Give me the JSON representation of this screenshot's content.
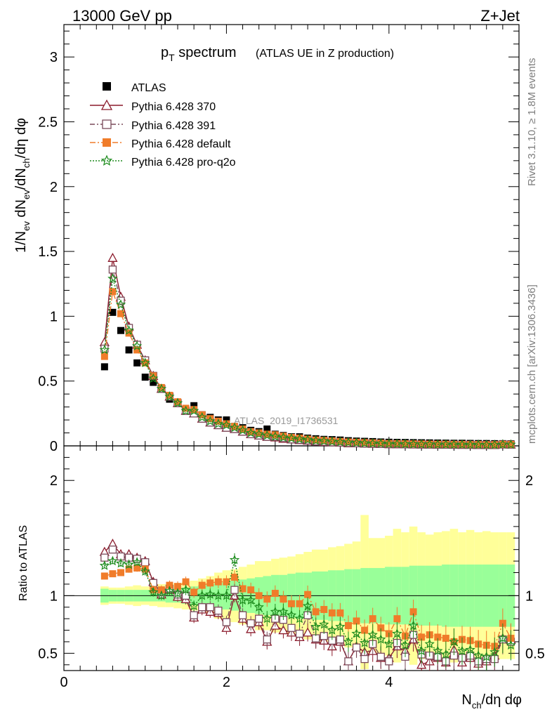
{
  "header": {
    "left": "13000 GeV pp",
    "right": "Z+Jet"
  },
  "title": {
    "main": "p",
    "main_sub": "T",
    "main_rest": " spectrum",
    "detail": "(ATLAS UE in Z production)"
  },
  "side_labels": {
    "rivet": "Rivet 3.1.10, ≥ 1.8M events",
    "mcplots": "mcplots.cern.ch [arXiv:1306.3436]"
  },
  "watermark": "ATLAS_2019_I1736531",
  "axes": {
    "main_ylabel": "1/N_ev dN_ev/dN_ch/dη dφ",
    "ratio_ylabel": "Ratio to ATLAS",
    "xlabel": "N_ch/dη dφ",
    "x_ticks": [
      "0",
      "2",
      "4"
    ],
    "main_y_ticks": [
      "0",
      "0.5",
      "1",
      "1.5",
      "2",
      "2.5",
      "3"
    ],
    "ratio_y_ticks": [
      "0.5",
      "1",
      "2"
    ]
  },
  "chart_data": {
    "type": "scatter",
    "xlim": [
      0,
      5.6
    ],
    "main_ylim": [
      0,
      3.25
    ],
    "ratio_ylim": [
      0.35,
      2.3
    ],
    "x": [
      0.5,
      0.6,
      0.7,
      0.8,
      0.9,
      1.0,
      1.1,
      1.2,
      1.3,
      1.4,
      1.5,
      1.6,
      1.7,
      1.8,
      1.9,
      2.0,
      2.1,
      2.2,
      2.3,
      2.4,
      2.5,
      2.6,
      2.7,
      2.8,
      2.9,
      3.0,
      3.1,
      3.2,
      3.3,
      3.4,
      3.5,
      3.6,
      3.7,
      3.8,
      3.9,
      4.0,
      4.1,
      4.2,
      4.3,
      4.4,
      4.5,
      4.6,
      4.7,
      4.8,
      4.9,
      5.0,
      5.1,
      5.2,
      5.3,
      5.4,
      5.5
    ],
    "series": [
      {
        "name": "ATLAS",
        "color": "#000000",
        "marker": "filled-square",
        "values": [
          0.61,
          1.03,
          0.89,
          0.74,
          0.64,
          0.53,
          0.49,
          0.44,
          0.36,
          0.33,
          0.28,
          0.31,
          0.24,
          0.22,
          0.2,
          0.2,
          0.15,
          0.14,
          0.12,
          0.11,
          0.13,
          0.09,
          0.08,
          0.07,
          0.07,
          0.06,
          0.055,
          0.05,
          0.048,
          0.045,
          0.04,
          0.037,
          0.035,
          0.033,
          0.03,
          0.028,
          0.027,
          0.026,
          0.025,
          0.024,
          0.023,
          0.022,
          0.021,
          0.02,
          0.02,
          0.019,
          0.018,
          0.018,
          0.017,
          0.017,
          0.016
        ]
      },
      {
        "name": "Pythia 6.428 370",
        "color": "#8b1a2b",
        "marker": "open-triangle",
        "values": [
          0.8,
          1.45,
          1.15,
          0.92,
          0.78,
          0.66,
          0.54,
          0.44,
          0.38,
          0.33,
          0.27,
          0.25,
          0.21,
          0.18,
          0.16,
          0.14,
          0.13,
          0.11,
          0.09,
          0.08,
          0.07,
          0.065,
          0.055,
          0.05,
          0.045,
          0.04,
          0.035,
          0.03,
          0.027,
          0.025,
          0.02,
          0.02,
          0.018,
          0.016,
          0.015,
          0.013,
          0.012,
          0.012,
          0.011,
          0.01,
          0.01,
          0.009,
          0.009,
          0.008,
          0.008,
          0.008,
          0.007,
          0.007,
          0.007,
          0.011,
          0.01
        ],
        "ratio": [
          1.38,
          1.45,
          1.36,
          1.36,
          1.33,
          1.3,
          1.12,
          1.01,
          1.05,
          0.99,
          0.97,
          0.81,
          0.88,
          0.86,
          0.85,
          0.72,
          1.0,
          0.8,
          0.71,
          0.77,
          0.6,
          0.74,
          0.7,
          0.68,
          0.64,
          0.68,
          0.62,
          0.61,
          0.56,
          0.6,
          0.43,
          0.56,
          0.51,
          0.52,
          0.46,
          0.46,
          0.56,
          0.52,
          0.62,
          0.4,
          0.43,
          0.46,
          0.42,
          0.53,
          0.42,
          0.46,
          0.41,
          0.43,
          0.48,
          0.63,
          0.62
        ]
      },
      {
        "name": "Pythia 6.428 391",
        "color": "#7a4a5a",
        "marker": "open-square",
        "values": [
          0.75,
          1.36,
          1.12,
          0.91,
          0.78,
          0.66,
          0.54,
          0.44,
          0.38,
          0.33,
          0.27,
          0.25,
          0.21,
          0.18,
          0.16,
          0.14,
          0.13,
          0.11,
          0.09,
          0.08,
          0.07,
          0.07,
          0.06,
          0.05,
          0.047,
          0.042,
          0.035,
          0.032,
          0.028,
          0.026,
          0.022,
          0.02,
          0.018,
          0.017,
          0.015,
          0.013,
          0.013,
          0.012,
          0.011,
          0.011,
          0.01,
          0.009,
          0.009,
          0.009,
          0.008,
          0.008,
          0.007,
          0.007,
          0.007,
          0.011,
          0.01
        ],
        "ratio": [
          1.33,
          1.4,
          1.34,
          1.33,
          1.32,
          1.29,
          1.11,
          1.03,
          1.06,
          1.01,
          1.0,
          0.83,
          0.9,
          0.9,
          0.87,
          0.77,
          1.05,
          0.83,
          0.76,
          0.8,
          0.62,
          0.8,
          0.79,
          0.72,
          0.67,
          0.83,
          0.63,
          0.65,
          0.61,
          0.62,
          0.43,
          0.55,
          0.45,
          0.58,
          0.47,
          0.43,
          0.59,
          0.47,
          0.66,
          0.49,
          0.48,
          0.47,
          0.43,
          0.48,
          0.46,
          0.48,
          0.43,
          0.45,
          0.45,
          0.62,
          0.6
        ]
      },
      {
        "name": "Pythia 6.428 default",
        "color": "#f07c2a",
        "marker": "filled-square",
        "values": [
          0.69,
          1.19,
          1.02,
          0.87,
          0.74,
          0.64,
          0.54,
          0.45,
          0.39,
          0.34,
          0.29,
          0.28,
          0.24,
          0.21,
          0.19,
          0.17,
          0.15,
          0.13,
          0.11,
          0.1,
          0.09,
          0.085,
          0.075,
          0.065,
          0.06,
          0.052,
          0.045,
          0.042,
          0.038,
          0.034,
          0.03,
          0.028,
          0.025,
          0.023,
          0.021,
          0.018,
          0.017,
          0.016,
          0.015,
          0.014,
          0.013,
          0.012,
          0.012,
          0.011,
          0.011,
          0.01,
          0.01,
          0.009,
          0.009,
          0.012,
          0.011
        ],
        "ratio": [
          1.17,
          1.19,
          1.2,
          1.23,
          1.24,
          1.23,
          1.05,
          1.05,
          1.09,
          1.08,
          1.12,
          1.03,
          1.09,
          1.11,
          1.12,
          1.12,
          1.16,
          1.06,
          1.05,
          1.0,
          0.97,
          1.02,
          0.97,
          0.93,
          0.93,
          1.01,
          0.86,
          0.88,
          0.85,
          0.85,
          0.74,
          0.78,
          0.7,
          0.8,
          0.72,
          0.67,
          0.8,
          0.65,
          0.86,
          0.64,
          0.66,
          0.64,
          0.63,
          0.6,
          0.62,
          0.61,
          0.58,
          0.57,
          0.56,
          0.76,
          0.63
        ]
      },
      {
        "name": "Pythia 6.428 pro-q2o",
        "color": "#1e8c1e",
        "marker": "star",
        "values": [
          0.74,
          1.29,
          1.09,
          0.89,
          0.77,
          0.64,
          0.52,
          0.44,
          0.38,
          0.33,
          0.27,
          0.27,
          0.22,
          0.19,
          0.17,
          0.16,
          0.14,
          0.12,
          0.1,
          0.09,
          0.08,
          0.072,
          0.065,
          0.058,
          0.052,
          0.047,
          0.04,
          0.037,
          0.033,
          0.03,
          0.026,
          0.024,
          0.021,
          0.019,
          0.018,
          0.016,
          0.015,
          0.014,
          0.013,
          0.012,
          0.012,
          0.011,
          0.011,
          0.01,
          0.01,
          0.009,
          0.009,
          0.008,
          0.008,
          0.011,
          0.01
        ],
        "ratio": [
          1.26,
          1.3,
          1.28,
          1.27,
          1.29,
          1.21,
          1.03,
          1.0,
          1.04,
          1.02,
          1.05,
          0.91,
          1.0,
          1.01,
          1.0,
          1.0,
          1.31,
          0.96,
          0.96,
          0.9,
          0.8,
          0.86,
          0.86,
          0.83,
          0.8,
          0.91,
          0.73,
          0.75,
          0.7,
          0.73,
          0.6,
          0.67,
          0.59,
          0.66,
          0.62,
          0.58,
          0.67,
          0.57,
          0.74,
          0.52,
          0.58,
          0.52,
          0.49,
          0.6,
          0.52,
          0.53,
          0.48,
          0.47,
          0.51,
          0.63,
          0.57
        ]
      }
    ],
    "uncertainty_band": {
      "green_halfwidth": [
        0.06,
        0.05,
        0.05,
        0.05,
        0.05,
        0.05,
        0.05,
        0.05,
        0.06,
        0.06,
        0.07,
        0.08,
        0.09,
        0.1,
        0.11,
        0.12,
        0.13,
        0.14,
        0.15,
        0.16,
        0.17,
        0.18,
        0.18,
        0.19,
        0.2,
        0.2,
        0.21,
        0.21,
        0.22,
        0.22,
        0.23,
        0.23,
        0.24,
        0.24,
        0.24,
        0.25,
        0.25,
        0.25,
        0.26,
        0.26,
        0.26,
        0.26,
        0.27,
        0.27,
        0.27,
        0.27,
        0.27,
        0.27,
        0.27,
        0.27,
        0.27
      ],
      "yellow_halfwidth": [
        0.08,
        0.07,
        0.07,
        0.08,
        0.09,
        0.08,
        0.09,
        0.1,
        0.1,
        0.11,
        0.12,
        0.13,
        0.15,
        0.17,
        0.2,
        0.22,
        0.23,
        0.25,
        0.27,
        0.3,
        0.3,
        0.32,
        0.33,
        0.34,
        0.36,
        0.38,
        0.4,
        0.4,
        0.42,
        0.43,
        0.45,
        0.47,
        0.7,
        0.5,
        0.5,
        0.52,
        0.58,
        0.55,
        0.6,
        0.55,
        0.53,
        0.55,
        0.56,
        0.58,
        0.55,
        0.57,
        0.55,
        0.56,
        0.55,
        0.55,
        0.55
      ]
    }
  }
}
